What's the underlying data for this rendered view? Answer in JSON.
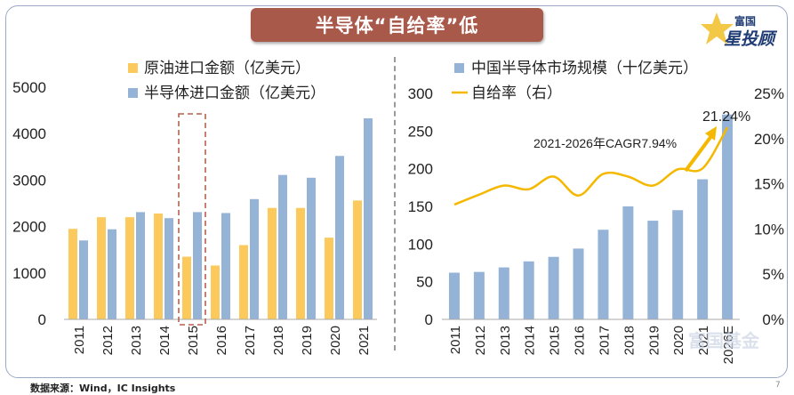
{
  "page": {
    "title": "半导体“自给率”低",
    "source": "数据来源：Wind，IC Insights",
    "page_number": "7",
    "logo_text_1": "富国",
    "logo_text_2": "星投顾",
    "watermark": "富国基金"
  },
  "colors": {
    "oil": "#fcca5c",
    "semi": "#95b3d7",
    "line": "#f5b800",
    "title_bg": "#a9594a",
    "arrow": "#f5b800",
    "highlight": "#b5604d"
  },
  "chart_data": [
    {
      "type": "bar",
      "title": "",
      "categories": [
        "2011",
        "2012",
        "2013",
        "2014",
        "2015",
        "2016",
        "2017",
        "2018",
        "2019",
        "2020",
        "2021"
      ],
      "series": [
        {
          "name": "原油进口金额（亿美元）",
          "values": [
            1950,
            2200,
            2200,
            2280,
            1350,
            1160,
            1600,
            2400,
            2400,
            1760,
            2560
          ]
        },
        {
          "name": "半导体进口金额（亿美元）",
          "values": [
            1700,
            1940,
            2310,
            2180,
            2310,
            2290,
            2590,
            3110,
            3050,
            3520,
            4330
          ]
        }
      ],
      "yticks": [
        "0",
        "1000",
        "2000",
        "3000",
        "4000",
        "5000"
      ],
      "ylim": [
        0,
        5000
      ],
      "highlight_category": "2015"
    },
    {
      "type": "bar+line",
      "title": "",
      "categories": [
        "2011",
        "2012",
        "2013",
        "2014",
        "2015",
        "2016",
        "2017",
        "2018",
        "2019",
        "2020",
        "2021",
        "2026E"
      ],
      "series": [
        {
          "name": "中国半导体市场规模（十亿美元）",
          "type": "bar",
          "axis": "left",
          "values": [
            62,
            63,
            69,
            77,
            83,
            94,
            119,
            150,
            131,
            145,
            186,
            272
          ]
        },
        {
          "name": "自给率（右）",
          "type": "line",
          "axis": "right",
          "values": [
            12.7,
            13.8,
            14.8,
            14.4,
            15.8,
            13.7,
            16.1,
            15.8,
            14.8,
            16.6,
            16.7,
            21.24
          ]
        }
      ],
      "yticks_left": [
        "0",
        "50",
        "100",
        "150",
        "200",
        "250",
        "300"
      ],
      "ylim_left": [
        0,
        300
      ],
      "yticks_right": [
        "0%",
        "5%",
        "10%",
        "15%",
        "20%",
        "25%"
      ],
      "ylim_right": [
        0,
        25
      ],
      "annotations": [
        "2021-2026年CAGR7.94%",
        "21.24%"
      ]
    }
  ]
}
